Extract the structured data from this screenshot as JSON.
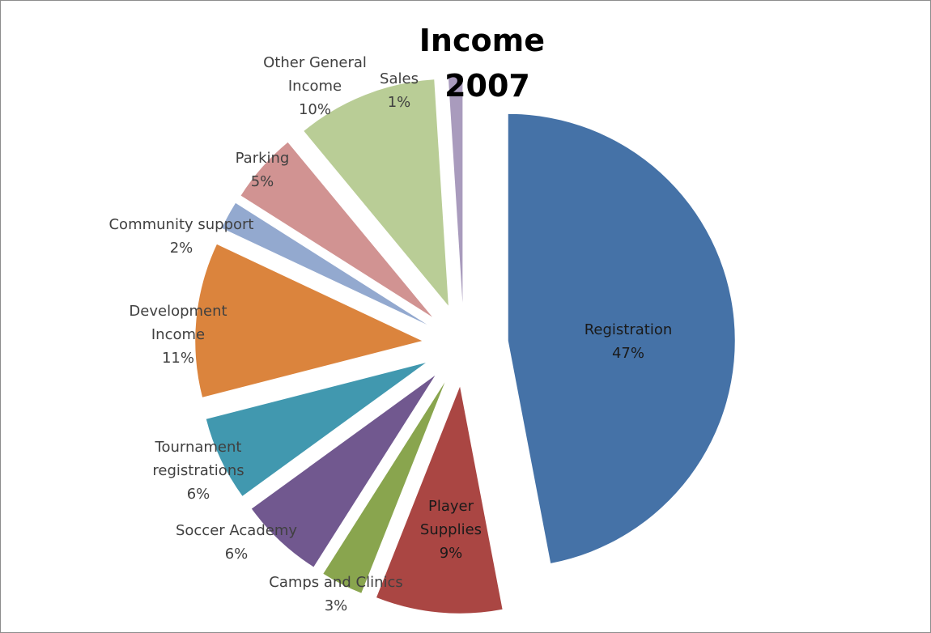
{
  "chart_data": {
    "type": "pie",
    "title_lines": [
      "Income",
      "2007"
    ],
    "exploded": true,
    "slices": [
      {
        "label": "Registration",
        "percent": 47,
        "color": "#4572a7"
      },
      {
        "label": "Player Supplies",
        "percent": 9,
        "color": "#aa4643"
      },
      {
        "label": "Camps and Clinics",
        "percent": 3,
        "color": "#89a54e"
      },
      {
        "label": "Soccer Academy",
        "percent": 6,
        "color": "#71588f"
      },
      {
        "label": "Tournament registrations",
        "percent": 6,
        "color": "#4198af"
      },
      {
        "label": "Development Income",
        "percent": 11,
        "color": "#db843d"
      },
      {
        "label": "Community support",
        "percent": 2,
        "color": "#93a9cf"
      },
      {
        "label": "Parking",
        "percent": 5,
        "color": "#d19392"
      },
      {
        "label": "Other General Income",
        "percent": 10,
        "color": "#b9cd96"
      },
      {
        "label": "Sales",
        "percent": 1,
        "color": "#a99bbd"
      }
    ],
    "label_lines": [
      [
        "Registration",
        "47%"
      ],
      [
        "Player",
        "Supplies",
        "9%"
      ],
      [
        "Camps and Clinics",
        "3%"
      ],
      [
        "Soccer Academy",
        "6%"
      ],
      [
        "Tournament",
        "registrations",
        "6%"
      ],
      [
        "Development",
        "Income",
        "11%"
      ],
      [
        "Community support",
        "2%"
      ],
      [
        "Parking",
        "5%"
      ],
      [
        "Other General",
        "Income",
        "10%"
      ],
      [
        "Sales",
        "1%"
      ]
    ]
  }
}
